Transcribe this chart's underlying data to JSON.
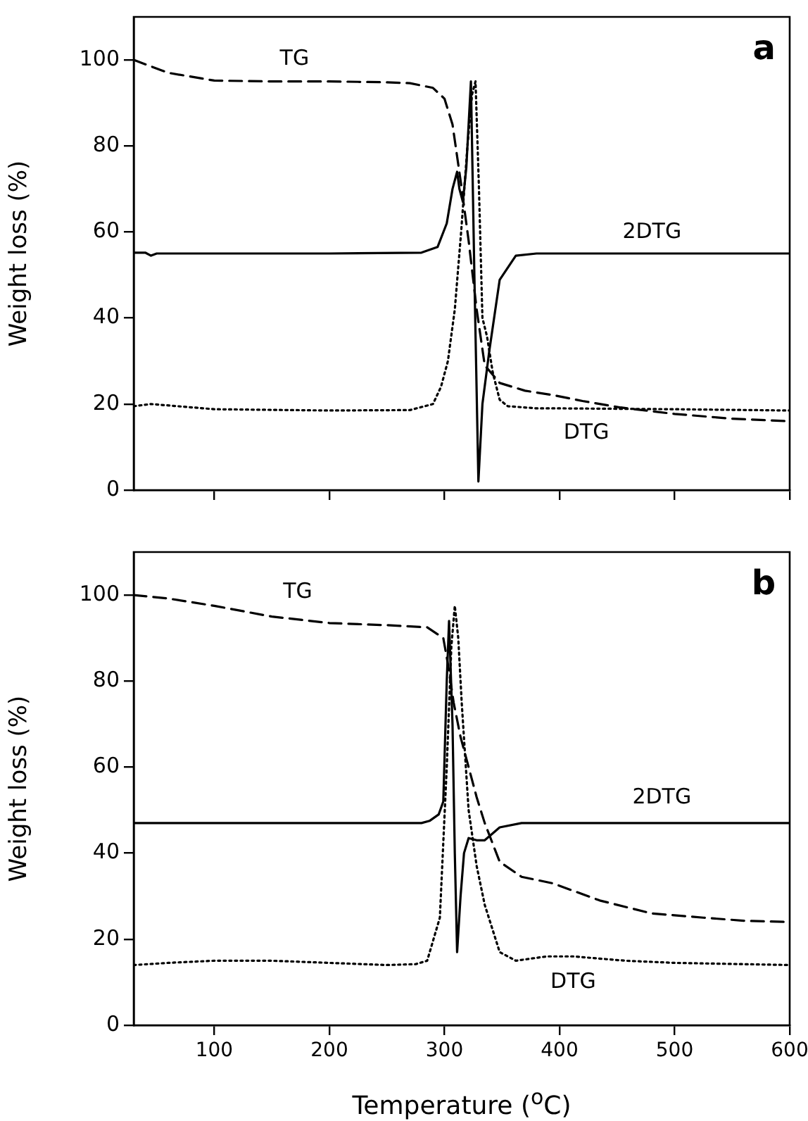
{
  "chart_data": [
    {
      "type": "line",
      "title": "a",
      "ylabel": "Weight loss (%)",
      "xlim": [
        30,
        600
      ],
      "xticks": [
        100,
        200,
        300,
        400,
        500,
        600
      ],
      "ylim": [
        0,
        110
      ],
      "yticks": [
        0,
        20,
        40,
        60,
        80,
        100
      ],
      "grid": false,
      "legend": false,
      "marker": "none",
      "tick_labels": "y",
      "series": [
        {
          "name": "TG",
          "color": "#000000",
          "line_style": "dashed",
          "x": [
            30,
            60,
            100,
            150,
            200,
            250,
            270,
            290,
            300,
            307,
            314,
            321,
            328,
            335,
            348,
            370,
            394,
            420,
            453,
            500,
            550,
            600
          ],
          "values": [
            100,
            97,
            95.2,
            95,
            95,
            94.8,
            94.6,
            93.5,
            91,
            85,
            72,
            58,
            42,
            29,
            24.9,
            23.1,
            22.1,
            20.7,
            19.2,
            17.7,
            16.6,
            16
          ]
        },
        {
          "name": "2DTG",
          "color": "#000000",
          "line_style": "solid",
          "x": [
            30,
            40,
            45,
            50,
            100,
            200,
            280,
            294,
            302,
            307,
            311,
            313,
            316,
            319,
            323,
            326,
            329.5,
            333,
            339,
            348,
            362,
            380,
            450,
            600
          ],
          "values": [
            55.2,
            55.2,
            54.5,
            55,
            55,
            55,
            55.2,
            56.5,
            62,
            70,
            74,
            70,
            67,
            75,
            95,
            50,
            2,
            20,
            32.4,
            48.9,
            54.5,
            55,
            55,
            55
          ]
        },
        {
          "name": "DTG",
          "color": "#000000",
          "line_style": "dotted",
          "x": [
            30,
            45,
            100,
            200,
            270,
            290,
            297,
            303,
            309,
            314.5,
            320,
            324,
            327,
            330,
            333,
            337,
            342,
            348,
            355,
            380,
            400,
            500,
            600
          ],
          "values": [
            19.5,
            20,
            18.8,
            18.5,
            18.6,
            20,
            24,
            30,
            42,
            60,
            80,
            92,
            95,
            70,
            40,
            35.7,
            27.3,
            21,
            19.5,
            19,
            19,
            18.8,
            18.5
          ]
        }
      ]
    },
    {
      "type": "line",
      "title": "b",
      "xlabel": "Temperature ($^{o}$C)",
      "ylabel": "Weight loss (%)",
      "xlim": [
        30,
        600
      ],
      "xticks": [
        100,
        200,
        300,
        400,
        500,
        600
      ],
      "ylim": [
        0,
        110
      ],
      "yticks": [
        0,
        20,
        40,
        60,
        80,
        100
      ],
      "grid": false,
      "legend": false,
      "marker": "none",
      "series": [
        {
          "name": "TG",
          "color": "#000000",
          "line_style": "dashed",
          "x": [
            30,
            60,
            100,
            150,
            200,
            250,
            285,
            299,
            303,
            308,
            314,
            321,
            328,
            335,
            348,
            367,
            394,
            435,
            480,
            525,
            560,
            600
          ],
          "values": [
            100,
            99.2,
            97.5,
            95,
            93.5,
            93,
            92.5,
            90,
            84,
            75,
            67,
            60,
            53,
            47,
            38,
            34.5,
            33,
            29,
            26,
            25,
            24.3,
            24
          ]
        },
        {
          "name": "2DTG",
          "color": "#000000",
          "line_style": "solid",
          "x": [
            30,
            100,
            200,
            280,
            287,
            295,
            299,
            302,
            304,
            307,
            309,
            311,
            314,
            317,
            321,
            328,
            335,
            348,
            367,
            400,
            500,
            600
          ],
          "values": [
            47,
            47,
            47,
            47,
            47.5,
            49,
            52,
            80,
            94,
            70,
            40,
            17,
            30,
            40,
            43.5,
            43,
            43,
            46,
            47,
            47,
            47,
            47
          ]
        },
        {
          "name": "DTG",
          "color": "#000000",
          "line_style": "dotted",
          "x": [
            30,
            60,
            100,
            150,
            200,
            250,
            275,
            285,
            296,
            302,
            306,
            309,
            312,
            315,
            321,
            328,
            335,
            348,
            362,
            389,
            412,
            457,
            500,
            600
          ],
          "values": [
            14,
            14.5,
            15,
            15,
            14.5,
            14,
            14.2,
            15,
            25,
            60,
            88,
            97.5,
            90,
            75,
            50,
            37,
            28,
            17,
            15,
            16,
            16,
            15,
            14.5,
            14
          ]
        }
      ]
    }
  ]
}
